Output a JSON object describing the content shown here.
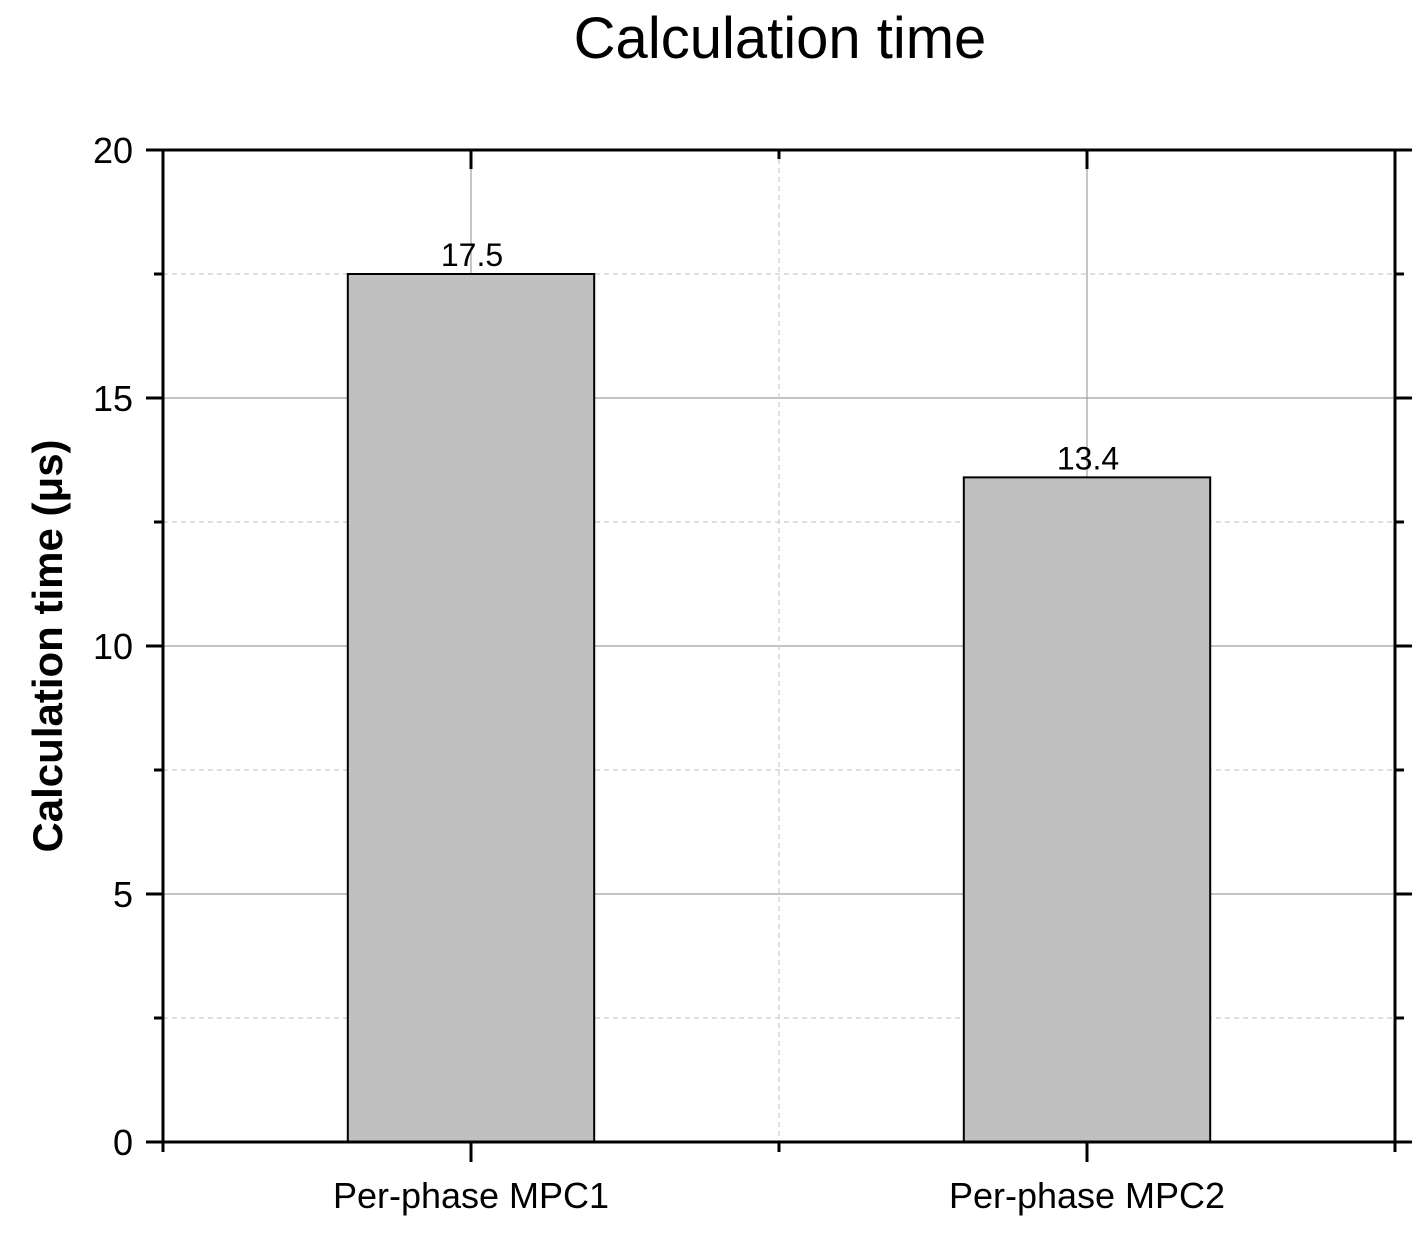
{
  "chart_data": {
    "type": "bar",
    "title": "Calculation time",
    "xlabel": "",
    "ylabel": "Calculation time (μs)",
    "categories": [
      "Per-phase MPC1",
      "Per-phase MPC2"
    ],
    "values": [
      17.5,
      13.4
    ],
    "data_labels": [
      "17.5",
      "13.4"
    ],
    "ylim": [
      0,
      20
    ],
    "yticks": [
      0,
      5,
      10,
      15,
      20
    ],
    "ytick_labels": [
      "0",
      "5",
      "10",
      "15",
      "20"
    ],
    "grid": true,
    "legend": "none",
    "colors": {
      "bar_fill": "#c0c0c0",
      "bar_stroke": "#000000",
      "major_grid": "#a0a0a0",
      "minor_grid": "#cccccc"
    }
  }
}
